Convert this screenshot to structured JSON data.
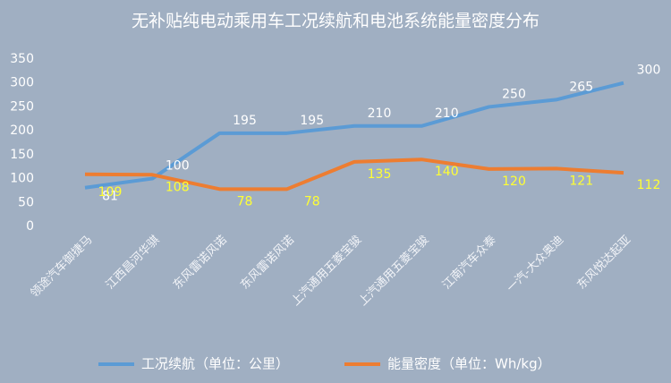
{
  "chart_data": {
    "type": "line",
    "title": "无补贴纯电动乘用车工况续航和电池系统能量密度分布",
    "categories": [
      "领途汽车御捷马",
      "江西昌河华骐",
      "东风雷诺风诺",
      "东风雷诺风诺",
      "上汽通用五菱宝骏",
      "上汽通用五菱宝骏",
      "江南汽车众泰",
      "一汽-大众奥迪",
      "东风悦达起亚"
    ],
    "series": [
      {
        "name": "工况续航（单位：公里）",
        "color": "#5b9bd5",
        "label_color": "#ffffff",
        "values": [
          81,
          100,
          195,
          195,
          210,
          210,
          250,
          265,
          300
        ]
      },
      {
        "name": "能量密度（单位：Wh/kg）",
        "color": "#ed7d31",
        "label_color": "#ffff33",
        "values": [
          109,
          108,
          78,
          78,
          135,
          140,
          120,
          121,
          112
        ]
      }
    ],
    "ylim": [
      0,
      350
    ],
    "yticks": [
      0,
      50,
      100,
      150,
      200,
      250,
      300,
      350
    ],
    "legend": "bottom"
  }
}
